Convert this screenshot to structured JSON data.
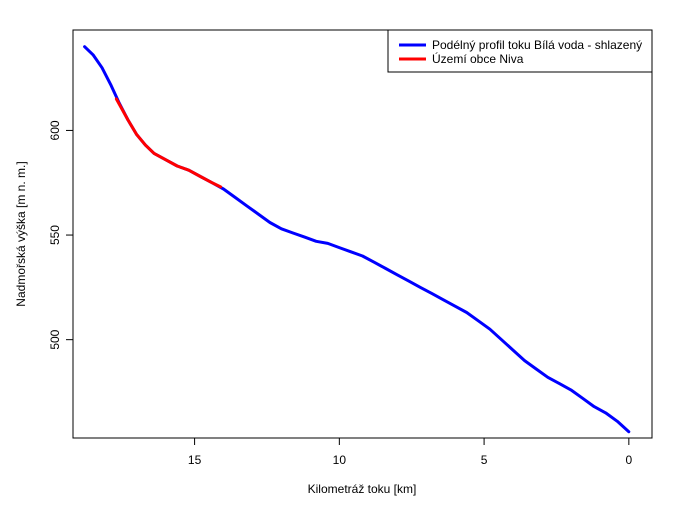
{
  "chart_data": {
    "type": "line",
    "title": "",
    "xlabel": "Kilometráž toku [km]",
    "ylabel": "Nadmořská výška [m n. m.]",
    "xlim": [
      19.2,
      -0.8
    ],
    "ylim": [
      453,
      648
    ],
    "x_reversed": true,
    "xticks": [
      15,
      10,
      5,
      0
    ],
    "yticks": [
      500,
      550,
      600
    ],
    "grid": false,
    "legend_position": "top-right",
    "series": [
      {
        "name": "Podélný profil toku Bílá voda - shlazený",
        "color": "#0000ff",
        "x": [
          18.8,
          18.5,
          18.2,
          17.9,
          17.6,
          17.3,
          17.0,
          16.7,
          16.4,
          16.0,
          15.6,
          15.2,
          14.8,
          14.4,
          14.0,
          13.6,
          13.2,
          12.8,
          12.4,
          12.0,
          11.6,
          11.2,
          10.8,
          10.4,
          10.0,
          9.6,
          9.2,
          8.8,
          8.4,
          8.0,
          7.6,
          7.2,
          6.8,
          6.4,
          6.0,
          5.6,
          5.2,
          4.8,
          4.4,
          4.0,
          3.6,
          3.2,
          2.8,
          2.4,
          2.0,
          1.6,
          1.2,
          0.8,
          0.4,
          0.0
        ],
        "y": [
          640,
          636,
          630,
          622,
          613,
          605,
          598,
          593,
          589,
          586,
          583,
          581,
          578,
          575,
          572,
          568,
          564,
          560,
          556,
          553,
          551,
          549,
          547,
          546,
          544,
          542,
          540,
          537,
          534,
          531,
          528,
          525,
          522,
          519,
          516,
          513,
          509,
          505,
          500,
          495,
          490,
          486,
          482,
          479,
          476,
          472,
          468,
          465,
          461,
          456
        ]
      },
      {
        "name": "Území obce Niva",
        "color": "#ff0000",
        "x": [
          17.7,
          17.3,
          17.0,
          16.7,
          16.4,
          16.0,
          15.6,
          15.2,
          14.8,
          14.4,
          14.1
        ],
        "y": [
          615,
          605,
          598,
          593,
          589,
          586,
          583,
          581,
          578,
          575,
          573
        ]
      }
    ]
  }
}
